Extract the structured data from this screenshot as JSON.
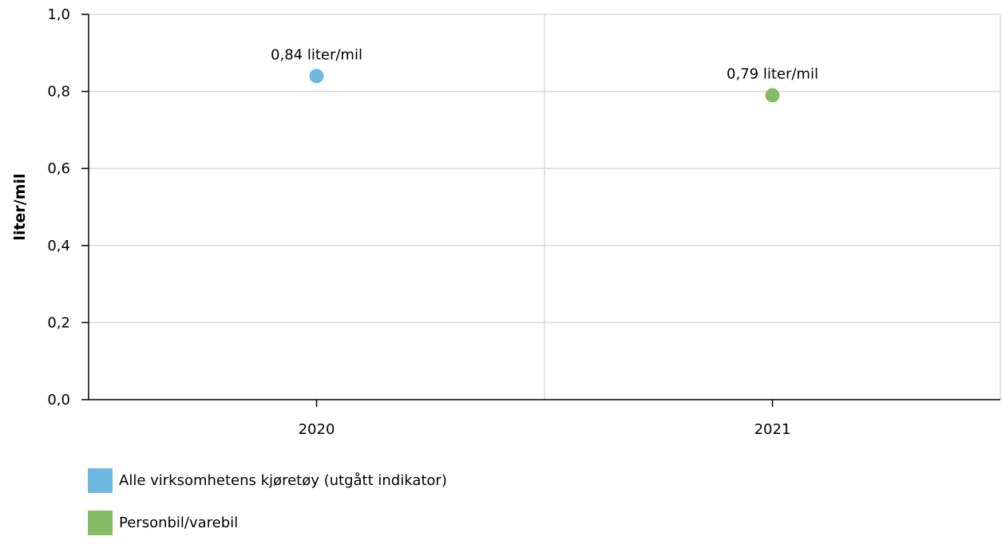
{
  "chart_data": {
    "type": "scatter",
    "ylabel": "liter/mil",
    "xlabel": "",
    "ylim": [
      0,
      1.0
    ],
    "yticks": [
      "0,0",
      "0,2",
      "0,4",
      "0,6",
      "0,8",
      "1,0"
    ],
    "ytick_values": [
      0,
      0.2,
      0.4,
      0.6,
      0.8,
      1.0
    ],
    "categories": [
      "2020",
      "2021"
    ],
    "grid": true,
    "legend_position": "bottom-left",
    "series": [
      {
        "name": "Alle virksomhetens kjøretøy (utgått indikator)",
        "color": "#6cb8e0",
        "points": [
          {
            "x": "2020",
            "y": 0.84,
            "label": "0,84 liter/mil"
          }
        ]
      },
      {
        "name": "Personbil/varebil",
        "color": "#86bb66",
        "points": [
          {
            "x": "2021",
            "y": 0.79,
            "label": "0,79 liter/mil"
          }
        ]
      }
    ]
  }
}
